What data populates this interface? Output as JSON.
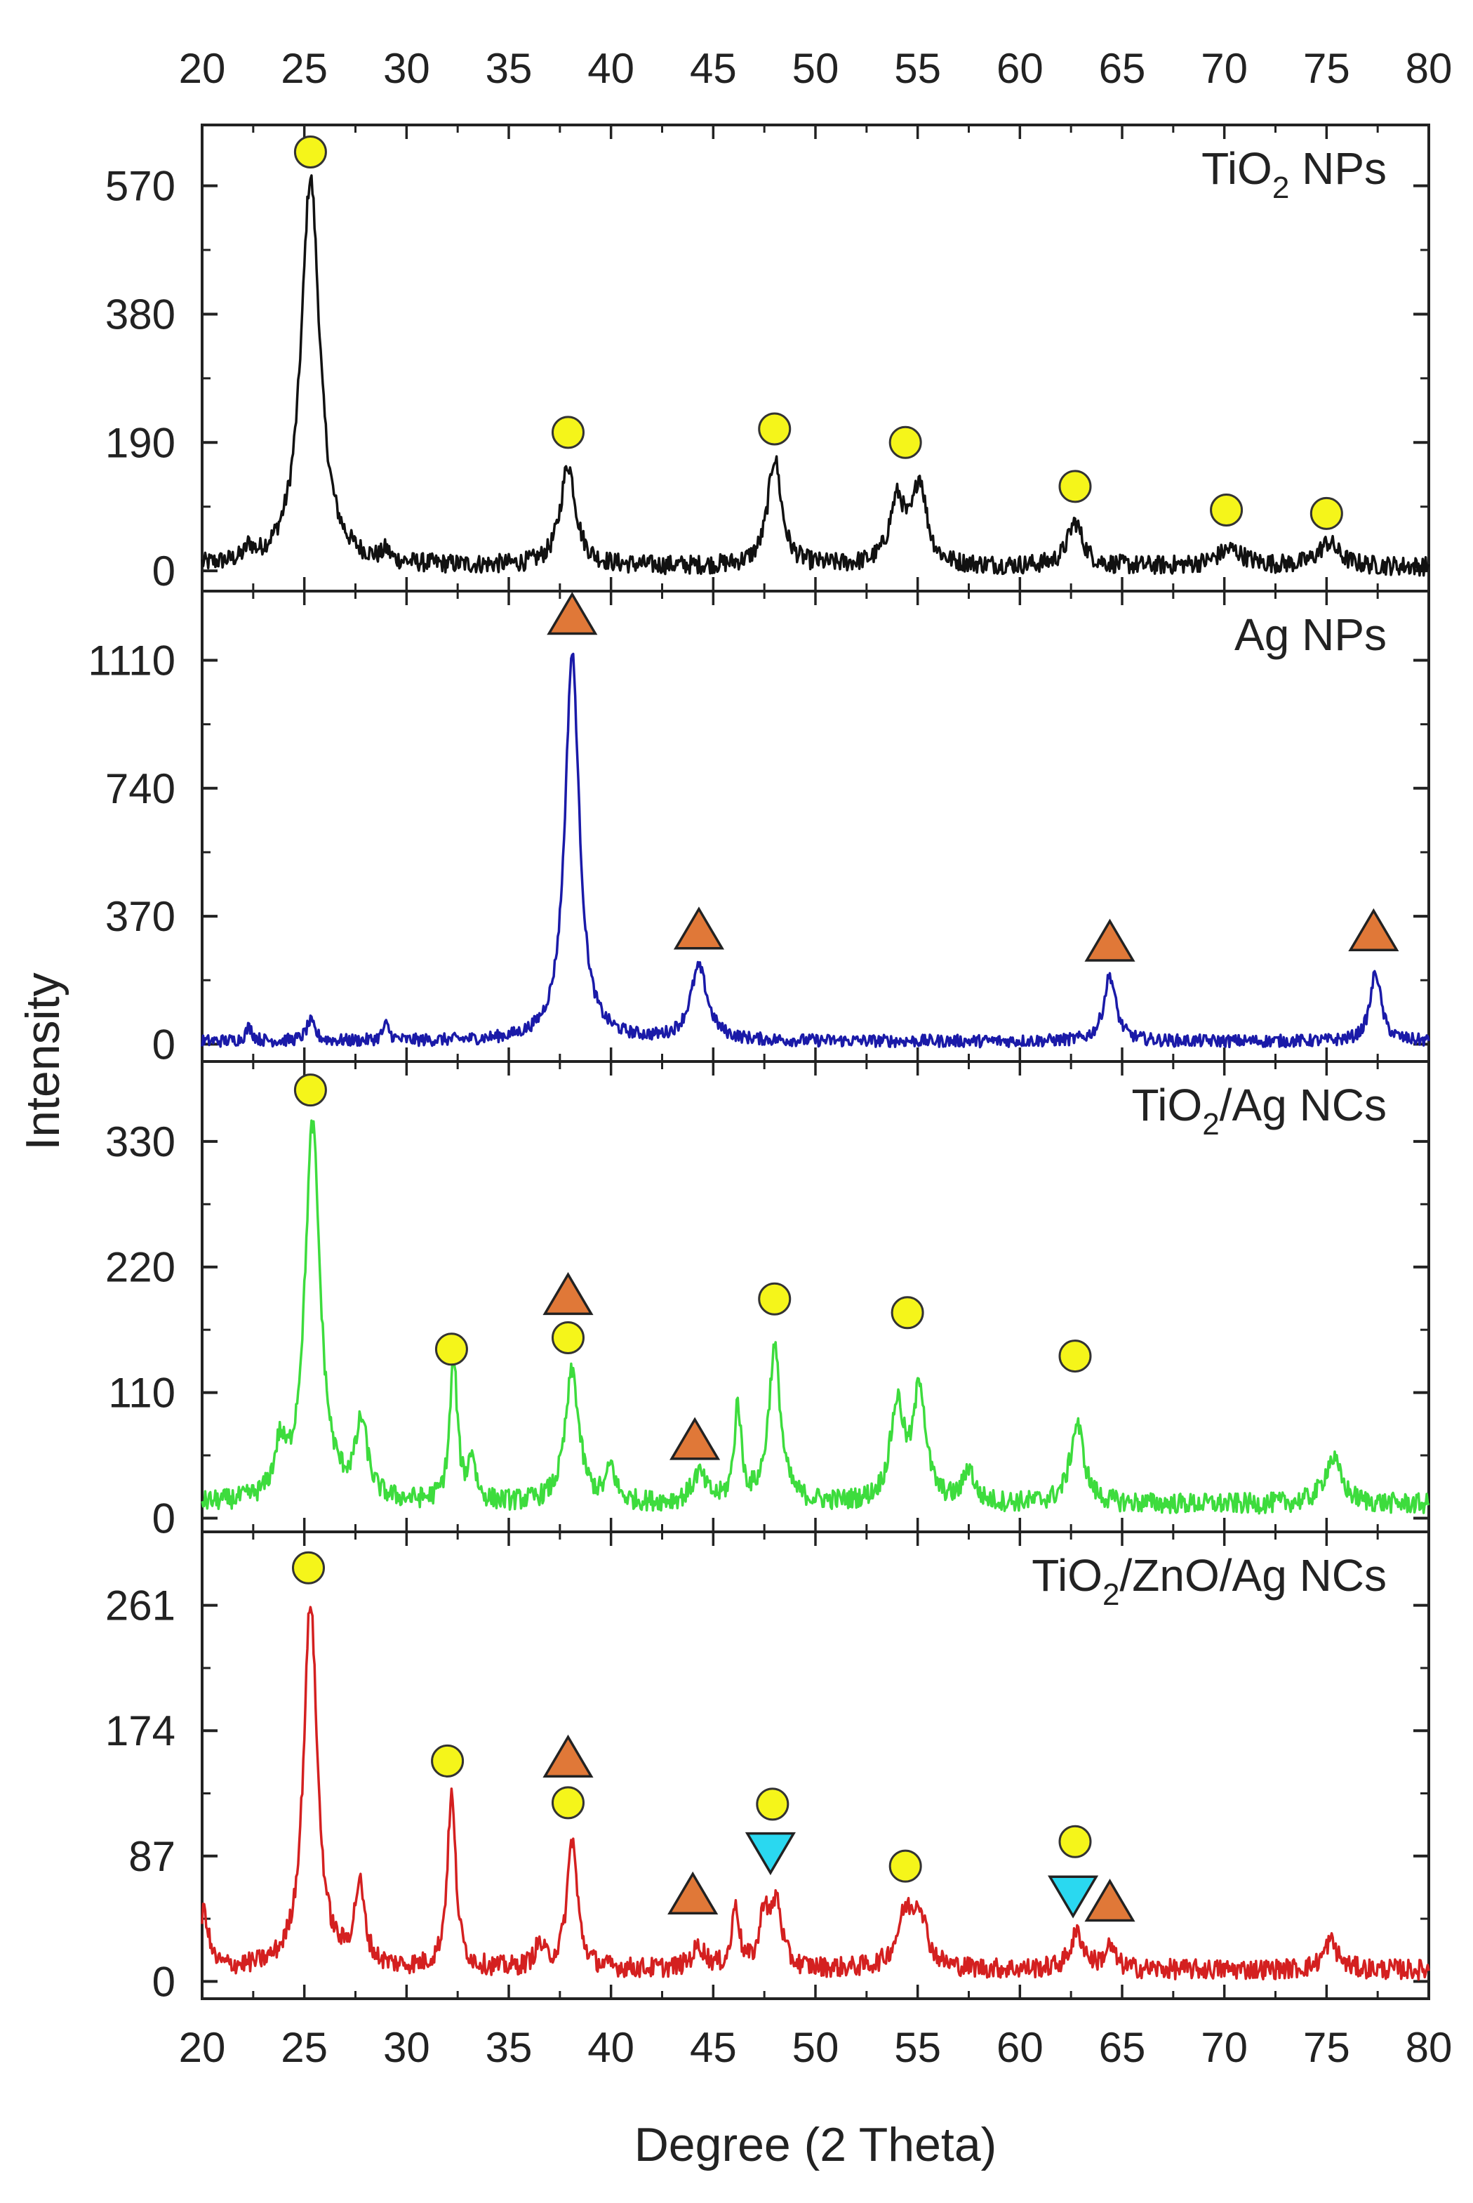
{
  "chart_data": {
    "type": "line",
    "title": "",
    "xlabel": "Degree (2 Theta)",
    "ylabel": "Intensity",
    "xlim": [
      20,
      80
    ],
    "xticks": [
      20,
      25,
      30,
      35,
      40,
      45,
      50,
      55,
      60,
      65,
      70,
      75,
      80
    ],
    "marker_colors": {
      "circle": "#f5f51a",
      "up_triangle": "#e07838",
      "down_triangle": "#2ad8f0"
    },
    "panels": [
      {
        "label": "TiO",
        "label_sub": "2",
        "label_suffix": " NPs",
        "color": "#111111",
        "ylim": [
          -30,
          660
        ],
        "yticks": [
          0,
          190,
          380,
          570
        ],
        "noise": 14,
        "baseline": 6,
        "peaks": [
          [
            25.3,
            575,
            0.55
          ],
          [
            37.9,
            150,
            0.45
          ],
          [
            48.0,
            160,
            0.4
          ],
          [
            54.0,
            95,
            0.45
          ],
          [
            55.1,
            120,
            0.4
          ],
          [
            62.7,
            65,
            0.45
          ],
          [
            70.3,
            25,
            0.8
          ],
          [
            75.1,
            35,
            0.6
          ],
          [
            22.3,
            18,
            0.2
          ],
          [
            29.0,
            15,
            0.2
          ]
        ],
        "markers": [
          {
            "type": "circle",
            "x": 25.3,
            "y": 620
          },
          {
            "type": "circle",
            "x": 37.9,
            "y": 205
          },
          {
            "type": "circle",
            "x": 48.0,
            "y": 210
          },
          {
            "type": "circle",
            "x": 54.4,
            "y": 190
          },
          {
            "type": "circle",
            "x": 62.7,
            "y": 125
          },
          {
            "type": "circle",
            "x": 70.1,
            "y": 90
          },
          {
            "type": "circle",
            "x": 75.0,
            "y": 85
          }
        ]
      },
      {
        "label": "Ag NPs",
        "label_sub": "",
        "label_suffix": "",
        "color": "#1a1aa8",
        "ylim": [
          -50,
          1310
        ],
        "yticks": [
          0,
          370,
          740,
          1110
        ],
        "noise": 18,
        "baseline": 8,
        "peaks": [
          [
            38.1,
            1120,
            0.42
          ],
          [
            44.3,
            210,
            0.5
          ],
          [
            64.4,
            190,
            0.35
          ],
          [
            77.4,
            200,
            0.32
          ],
          [
            22.3,
            40,
            0.2
          ],
          [
            25.3,
            55,
            0.25
          ],
          [
            29.0,
            45,
            0.2
          ]
        ],
        "markers": [
          {
            "type": "up_triangle",
            "x": 38.1,
            "y": 1240
          },
          {
            "type": "up_triangle",
            "x": 44.3,
            "y": 330
          },
          {
            "type": "up_triangle",
            "x": 64.4,
            "y": 295
          },
          {
            "type": "up_triangle",
            "x": 77.3,
            "y": 325
          }
        ]
      },
      {
        "label": "TiO",
        "label_sub": "2",
        "label_suffix": "/Ag NCs",
        "color": "#3ddc3d",
        "ylim": [
          -12,
          400
        ],
        "yticks": [
          0,
          110,
          220,
          330
        ],
        "noise": 9,
        "baseline": 12,
        "peaks": [
          [
            25.4,
            330,
            0.45
          ],
          [
            27.8,
            65,
            0.35
          ],
          [
            32.3,
            125,
            0.22
          ],
          [
            33.2,
            40,
            0.2
          ],
          [
            38.1,
            115,
            0.4
          ],
          [
            40.0,
            30,
            0.25
          ],
          [
            44.3,
            25,
            0.4
          ],
          [
            46.2,
            85,
            0.2
          ],
          [
            48.0,
            135,
            0.35
          ],
          [
            54.0,
            85,
            0.4
          ],
          [
            55.1,
            100,
            0.35
          ],
          [
            57.5,
            30,
            0.3
          ],
          [
            62.8,
            70,
            0.4
          ],
          [
            75.3,
            40,
            0.5
          ],
          [
            23.8,
            40,
            0.3
          ]
        ],
        "markers": [
          {
            "type": "circle",
            "x": 25.3,
            "y": 375
          },
          {
            "type": "circle",
            "x": 32.2,
            "y": 148
          },
          {
            "type": "up_triangle",
            "x": 37.9,
            "y": 195
          },
          {
            "type": "circle",
            "x": 37.9,
            "y": 158
          },
          {
            "type": "up_triangle",
            "x": 44.1,
            "y": 68
          },
          {
            "type": "circle",
            "x": 48.0,
            "y": 192
          },
          {
            "type": "circle",
            "x": 54.5,
            "y": 180
          },
          {
            "type": "circle",
            "x": 62.7,
            "y": 142
          }
        ]
      },
      {
        "label": "TiO",
        "label_sub": "2",
        "label_suffix": "/ZnO/Ag NCs",
        "color": "#d42020",
        "ylim": [
          -12,
          312
        ],
        "yticks": [
          0,
          87,
          174,
          261
        ],
        "noise": 7,
        "baseline": 8,
        "peaks": [
          [
            25.3,
            255,
            0.4
          ],
          [
            27.7,
            55,
            0.3
          ],
          [
            32.2,
            120,
            0.25
          ],
          [
            38.1,
            90,
            0.3
          ],
          [
            44.3,
            15,
            0.4
          ],
          [
            46.1,
            45,
            0.2
          ],
          [
            47.5,
            40,
            0.25
          ],
          [
            48.1,
            45,
            0.3
          ],
          [
            54.4,
            35,
            0.5
          ],
          [
            55.1,
            35,
            0.4
          ],
          [
            62.8,
            25,
            0.4
          ],
          [
            64.4,
            15,
            0.3
          ],
          [
            75.2,
            20,
            0.4
          ],
          [
            20.1,
            40,
            0.25
          ],
          [
            36.5,
            15,
            0.3
          ]
        ],
        "markers": [
          {
            "type": "circle",
            "x": 25.2,
            "y": 287
          },
          {
            "type": "circle",
            "x": 32.0,
            "y": 153
          },
          {
            "type": "up_triangle",
            "x": 37.9,
            "y": 155
          },
          {
            "type": "circle",
            "x": 37.9,
            "y": 124
          },
          {
            "type": "up_triangle",
            "x": 44.0,
            "y": 60
          },
          {
            "type": "down_triangle",
            "x": 47.8,
            "y": 90
          },
          {
            "type": "circle",
            "x": 47.9,
            "y": 123
          },
          {
            "type": "circle",
            "x": 54.4,
            "y": 80
          },
          {
            "type": "down_triangle",
            "x": 62.6,
            "y": 60
          },
          {
            "type": "circle",
            "x": 62.7,
            "y": 97
          },
          {
            "type": "up_triangle",
            "x": 64.4,
            "y": 55
          }
        ]
      }
    ]
  }
}
